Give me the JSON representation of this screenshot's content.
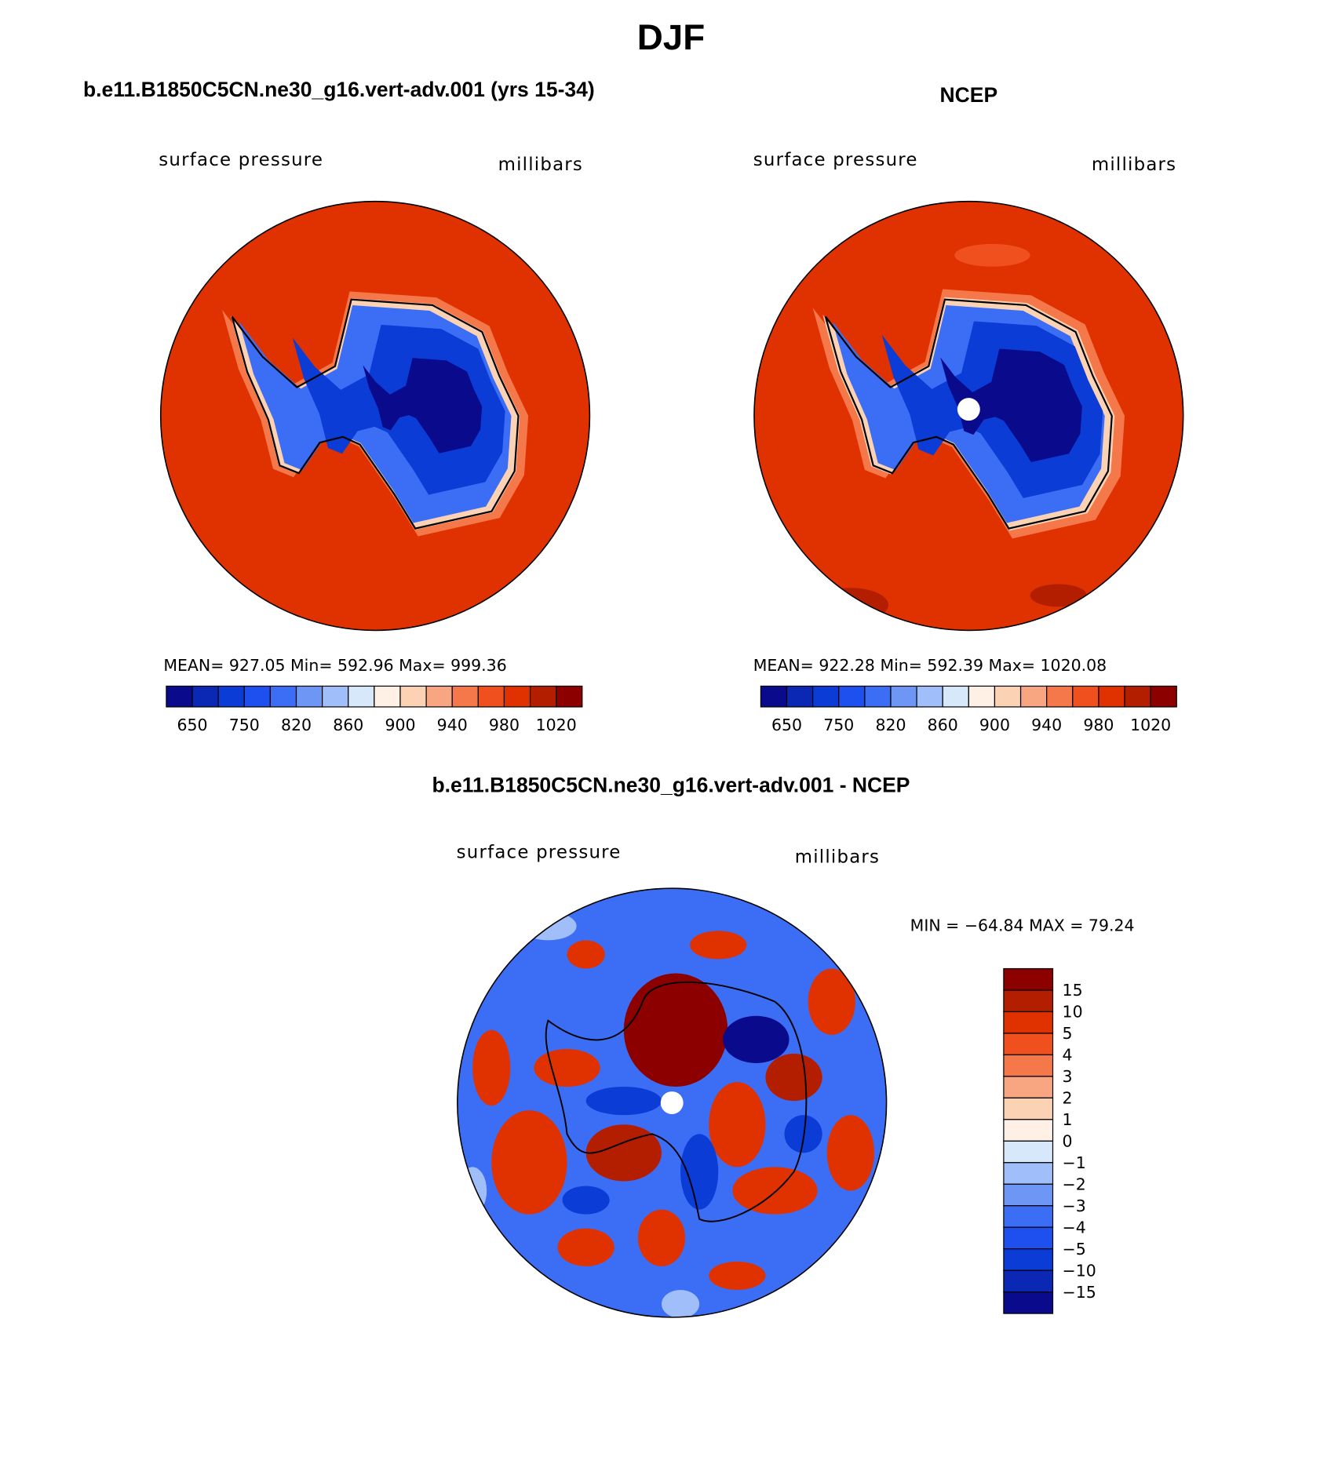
{
  "title": "DJF",
  "panels": [
    {
      "title": "b.e11.B1850C5CN.ne30_g16.vert-adv.001 (yrs 15-34)",
      "left_label": "surface pressure",
      "right_label": "millibars",
      "stats": "MEAN= 927.05   Min= 592.96   Max= 999.36",
      "colorbar": {
        "labels": [
          "650",
          "750",
          "820",
          "860",
          "900",
          "940",
          "980",
          "1020"
        ],
        "colors": [
          "#0a0a8c",
          "#0a28b4",
          "#0c3cd6",
          "#1e50f0",
          "#3c6ef5",
          "#6e96f5",
          "#a0befa",
          "#d7e8fa",
          "#fff0e6",
          "#fcd2b4",
          "#f8a582",
          "#f5784b",
          "#f0501e",
          "#e03200",
          "#b41e00",
          "#8c0000"
        ]
      }
    },
    {
      "title": "NCEP",
      "left_label": "surface pressure",
      "right_label": "millibars",
      "stats": "MEAN= 922.28   Min= 592.39   Max= 1020.08",
      "colorbar": {
        "labels": [
          "650",
          "750",
          "820",
          "860",
          "900",
          "940",
          "980",
          "1020"
        ],
        "colors": [
          "#0a0a8c",
          "#0a28b4",
          "#0c3cd6",
          "#1e50f0",
          "#3c6ef5",
          "#6e96f5",
          "#a0befa",
          "#d7e8fa",
          "#fff0e6",
          "#fcd2b4",
          "#f8a582",
          "#f5784b",
          "#f0501e",
          "#e03200",
          "#b41e00",
          "#8c0000"
        ]
      }
    },
    {
      "title": "b.e11.B1850C5CN.ne30_g16.vert-adv.001 - NCEP",
      "left_label": "surface pressure",
      "right_label": "millibars",
      "stats": "MIN = −64.84 MAX =  79.24",
      "colorbar": {
        "labels": [
          "15",
          "10",
          "5",
          "4",
          "3",
          "2",
          "1",
          "0",
          "−1",
          "−2",
          "−3",
          "−4",
          "−5",
          "−10",
          "−15"
        ],
        "colors": [
          "#8c0000",
          "#b41e00",
          "#e03200",
          "#f0501e",
          "#f5784b",
          "#f8a582",
          "#fcd2b4",
          "#fff0e6",
          "#d7e8fa",
          "#a0befa",
          "#6e96f5",
          "#3c6ef5",
          "#1e50f0",
          "#0c3cd6",
          "#0a28b4",
          "#0a0a8c"
        ]
      }
    }
  ]
}
